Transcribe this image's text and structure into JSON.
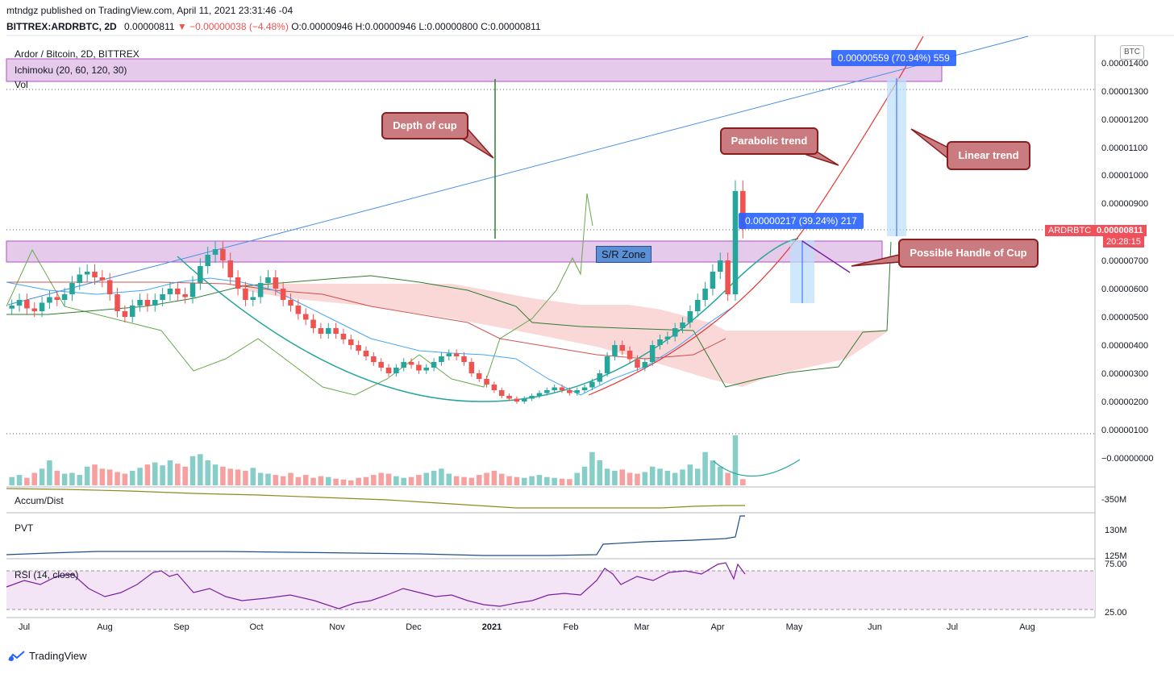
{
  "header": {
    "line1": "mtndgz published on TradingView.com, April 11, 2021 23:31:46 -04",
    "symbol": "BITTREX:ARDRBTC, 2D",
    "last": "0.00000811",
    "change": "▼ −0.00000038 (−4.48%)",
    "ohlc": "O:0.00000946 H:0.00000946 L:0.00000800 C:0.00000811"
  },
  "chart_title": "Ardor / Bitcoin, 2D, BITTREX",
  "indicators": {
    "ichimoku": "Ichimoku (20, 60, 120, 30)",
    "vol": "Vol",
    "accum": "Accum/Dist",
    "pvt": "PVT",
    "rsi": "RSI (14, close)"
  },
  "currency_badge": "BTC",
  "price_tag": {
    "symbol": "ARDRBTC",
    "price": "0.00000811",
    "countdown": "20:28:15"
  },
  "annotations": {
    "depth_of_cup": "Depth of cup",
    "parabolic_trend": "Parabolic trend",
    "linear_trend": "Linear trend",
    "handle": "Possible Handle of Cup",
    "sr_zone": "S/R Zone",
    "measure_1": "0.00000559 (70.94%) 559",
    "measure_2": "0.00000217 (39.24%) 217"
  },
  "price_axis": [
    "0.00001400",
    "0.00001300",
    "0.00001200",
    "0.00001100",
    "0.00001000",
    "0.00000900",
    "0.00000700",
    "0.00000600",
    "0.00000500",
    "0.00000400",
    "0.00000300",
    "0.00000200",
    "0.00000100",
    "−0.00000000"
  ],
  "accum_axis": "-350M",
  "pvt_axis": [
    "130M",
    "125M"
  ],
  "rsi_axis": [
    "75.00",
    "25.00"
  ],
  "time_axis": [
    "Jul",
    "Aug",
    "Sep",
    "Oct",
    "Nov",
    "Dec",
    "2021",
    "Feb",
    "Mar",
    "Apr",
    "May",
    "Jun",
    "Jul",
    "Aug"
  ],
  "brand": "TradingView",
  "colors": {
    "up": "#26a69a",
    "down": "#ef5350",
    "zone": "#e1bee7",
    "cloud": "#f8c8c8"
  },
  "chart_data": {
    "type": "candlestick",
    "title": "Ardor / Bitcoin, 2D, BITTREX",
    "y_unit": "BTC",
    "ylim": [
      0,
      1.5e-05
    ],
    "close": [
      5.4e-06,
      5.6e-06,
      5.3e-06,
      5.2e-06,
      5.5e-06,
      5.7e-06,
      5.6e-06,
      5.8e-06,
      6.2e-06,
      6.5e-06,
      6.6e-06,
      6.4e-06,
      6.3e-06,
      5.8e-06,
      5.2e-06,
      5e-06,
      5.4e-06,
      5.6e-06,
      5.4e-06,
      5.6e-06,
      5.8e-06,
      6e-06,
      5.8e-06,
      5.7e-06,
      6.2e-06,
      6.8e-06,
      7.2e-06,
      7.4e-06,
      7e-06,
      6.4e-06,
      6e-06,
      5.6e-06,
      5.7e-06,
      6.2e-06,
      6.4e-06,
      6e-06,
      5.6e-06,
      5.4e-06,
      5.1e-06,
      4.9e-06,
      4.6e-06,
      4.4e-06,
      4.6e-06,
      4.4e-06,
      4.2e-06,
      4e-06,
      3.8e-06,
      3.6e-06,
      3.4e-06,
      3.2e-06,
      3e-06,
      3.2e-06,
      3.4e-06,
      3.3e-06,
      3.1e-06,
      3.2e-06,
      3.4e-06,
      3.6e-06,
      3.7e-06,
      3.6e-06,
      3.4e-06,
      3e-06,
      2.8e-06,
      2.6e-06,
      2.4e-06,
      2.2e-06,
      2.1e-06,
      2e-06,
      2.1e-06,
      2.2e-06,
      2.3e-06,
      2.4e-06,
      2.5e-06,
      2.4e-06,
      2.3e-06,
      2.4e-06,
      2.5e-06,
      2.7e-06,
      3e-06,
      3.6e-06,
      4e-06,
      3.8e-06,
      3.5e-06,
      3.2e-06,
      3.4e-06,
      4e-06,
      4.2e-06,
      4.3e-06,
      4.6e-06,
      4.8e-06,
      5.2e-06,
      5.6e-06,
      6e-06,
      6.6e-06,
      7e-06,
      5.8e-06,
      9.46e-06,
      8.11e-06
    ],
    "volume": [
      20,
      25,
      18,
      30,
      40,
      60,
      35,
      28,
      30,
      25,
      45,
      50,
      40,
      38,
      32,
      28,
      35,
      42,
      50,
      55,
      48,
      60,
      52,
      45,
      70,
      75,
      60,
      50,
      45,
      40,
      38,
      35,
      42,
      30,
      28,
      25,
      22,
      30,
      20,
      25,
      18,
      22,
      20,
      16,
      14,
      12,
      18,
      20,
      25,
      30,
      28,
      22,
      18,
      20,
      25,
      30,
      35,
      40,
      28,
      22,
      20,
      18,
      25,
      30,
      35,
      28,
      22,
      20,
      18,
      22,
      25,
      20,
      18,
      16,
      15,
      30,
      45,
      80,
      60,
      40,
      35,
      38,
      30,
      28,
      32,
      45,
      40,
      35,
      30,
      38,
      50,
      40,
      80,
      60,
      45,
      30,
      120,
      15
    ],
    "rsi_ylim": [
      25,
      75
    ]
  }
}
